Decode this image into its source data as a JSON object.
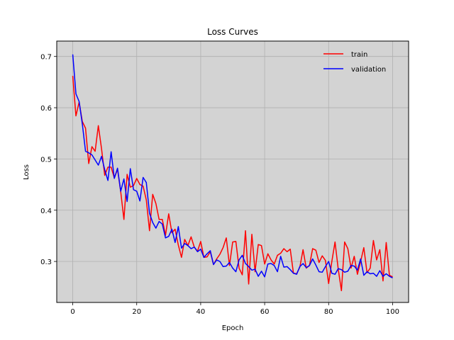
{
  "chart_data": {
    "type": "line",
    "title": "Loss Curves",
    "xlabel": "Epoch",
    "ylabel": "Loss",
    "xlim": [
      -5,
      105
    ],
    "ylim": [
      0.22,
      0.73
    ],
    "xticks": [
      0,
      20,
      40,
      60,
      80,
      100
    ],
    "yticks": [
      0.3,
      0.4,
      0.5,
      0.6,
      0.7
    ],
    "grid": true,
    "legend_position": "top-right",
    "background_color": "#d3d3d3",
    "series": [
      {
        "name": "train",
        "color": "#ff0000",
        "x": [
          0,
          1,
          2,
          3,
          4,
          5,
          6,
          7,
          8,
          9,
          10,
          11,
          12,
          13,
          14,
          15,
          16,
          17,
          18,
          19,
          20,
          21,
          22,
          23,
          24,
          25,
          26,
          27,
          28,
          29,
          30,
          31,
          32,
          33,
          34,
          35,
          36,
          37,
          38,
          39,
          40,
          41,
          42,
          43,
          44,
          45,
          46,
          47,
          48,
          49,
          50,
          51,
          52,
          53,
          54,
          55,
          56,
          57,
          58,
          59,
          60,
          61,
          62,
          63,
          64,
          65,
          66,
          67,
          68,
          69,
          70,
          71,
          72,
          73,
          74,
          75,
          76,
          77,
          78,
          79,
          80,
          81,
          82,
          83,
          84,
          85,
          86,
          87,
          88,
          89,
          90,
          91,
          92,
          93,
          94,
          95,
          96,
          97,
          98,
          99,
          100
        ],
        "values": [
          0.662,
          0.584,
          0.611,
          0.573,
          0.56,
          0.491,
          0.524,
          0.515,
          0.565,
          0.52,
          0.468,
          0.484,
          0.484,
          0.463,
          0.48,
          0.436,
          0.382,
          0.47,
          0.445,
          0.448,
          0.462,
          0.45,
          0.447,
          0.42,
          0.36,
          0.431,
          0.413,
          0.382,
          0.382,
          0.351,
          0.393,
          0.356,
          0.363,
          0.332,
          0.308,
          0.343,
          0.331,
          0.348,
          0.328,
          0.32,
          0.339,
          0.308,
          0.309,
          0.319,
          0.294,
          0.305,
          0.314,
          0.327,
          0.346,
          0.292,
          0.338,
          0.339,
          0.287,
          0.274,
          0.36,
          0.256,
          0.353,
          0.28,
          0.333,
          0.331,
          0.295,
          0.315,
          0.303,
          0.295,
          0.312,
          0.316,
          0.325,
          0.319,
          0.324,
          0.277,
          0.276,
          0.289,
          0.323,
          0.287,
          0.292,
          0.325,
          0.322,
          0.298,
          0.311,
          0.302,
          0.257,
          0.3,
          0.338,
          0.285,
          0.243,
          0.338,
          0.325,
          0.287,
          0.31,
          0.275,
          0.3,
          0.327,
          0.278,
          0.287,
          0.341,
          0.303,
          0.323,
          0.262,
          0.337,
          0.273,
          0.27
        ]
      },
      {
        "name": "validation",
        "color": "#0000ff",
        "x": [
          0,
          1,
          2,
          3,
          4,
          5,
          6,
          7,
          8,
          9,
          10,
          11,
          12,
          13,
          14,
          15,
          16,
          17,
          18,
          19,
          20,
          21,
          22,
          23,
          24,
          25,
          26,
          27,
          28,
          29,
          30,
          31,
          32,
          33,
          34,
          35,
          36,
          37,
          38,
          39,
          40,
          41,
          42,
          43,
          44,
          45,
          46,
          47,
          48,
          49,
          50,
          51,
          52,
          53,
          54,
          55,
          56,
          57,
          58,
          59,
          60,
          61,
          62,
          63,
          64,
          65,
          66,
          67,
          68,
          69,
          70,
          71,
          72,
          73,
          74,
          75,
          76,
          77,
          78,
          79,
          80,
          81,
          82,
          83,
          84,
          85,
          86,
          87,
          88,
          89,
          90,
          91,
          92,
          93,
          94,
          95,
          96,
          97,
          98,
          99,
          100
        ],
        "values": [
          0.704,
          0.627,
          0.612,
          0.568,
          0.515,
          0.512,
          0.508,
          0.498,
          0.488,
          0.505,
          0.479,
          0.458,
          0.514,
          0.462,
          0.482,
          0.437,
          0.461,
          0.417,
          0.481,
          0.44,
          0.437,
          0.418,
          0.464,
          0.454,
          0.394,
          0.376,
          0.365,
          0.378,
          0.373,
          0.346,
          0.349,
          0.363,
          0.337,
          0.368,
          0.326,
          0.335,
          0.331,
          0.325,
          0.328,
          0.319,
          0.324,
          0.308,
          0.315,
          0.321,
          0.294,
          0.303,
          0.3,
          0.29,
          0.291,
          0.298,
          0.287,
          0.28,
          0.303,
          0.312,
          0.296,
          0.29,
          0.283,
          0.285,
          0.271,
          0.281,
          0.27,
          0.295,
          0.296,
          0.292,
          0.28,
          0.31,
          0.289,
          0.29,
          0.284,
          0.277,
          0.275,
          0.29,
          0.296,
          0.288,
          0.292,
          0.305,
          0.293,
          0.28,
          0.279,
          0.29,
          0.3,
          0.277,
          0.275,
          0.286,
          0.284,
          0.279,
          0.281,
          0.292,
          0.291,
          0.283,
          0.305,
          0.273,
          0.28,
          0.276,
          0.277,
          0.271,
          0.282,
          0.271,
          0.276,
          0.271,
          0.268
        ]
      }
    ]
  }
}
